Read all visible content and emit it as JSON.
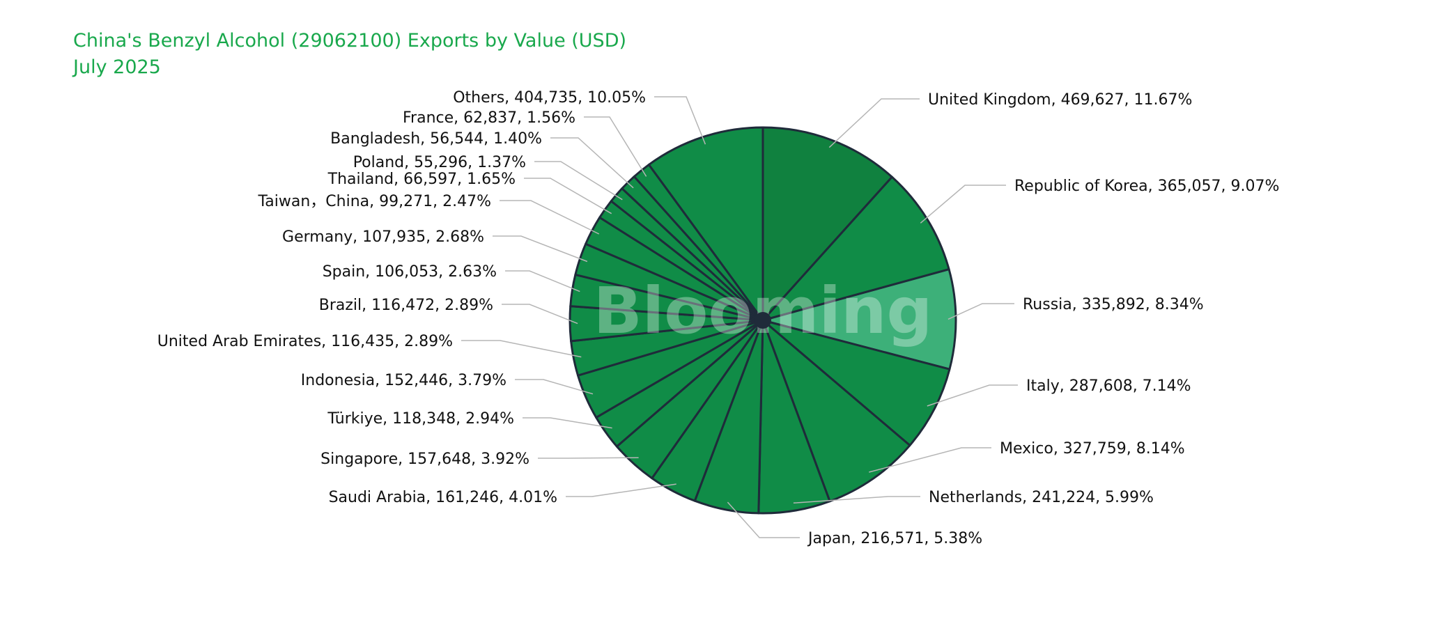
{
  "title": "China's Benzyl Alcohol (29062100) Exports by Value (USD)",
  "subtitle": "July 2025",
  "watermark": "Blooming",
  "colors": {
    "title": "#19a84c",
    "slice": "#108c47",
    "slice_dark": "#10813f",
    "slice_light": "#3db079",
    "slice_stroke": "#1f2b3a",
    "leader": "#b5b5b5",
    "label": "#111111"
  },
  "chart_data": {
    "type": "pie",
    "title": "China's Benzyl Alcohol (29062100) Exports by Value (USD)",
    "subtitle": "July 2025",
    "start_angle": "12 o'clock",
    "direction": "clockwise",
    "slices": [
      {
        "name": "United Kingdom",
        "value": 469627,
        "percent": "11.67%",
        "label": "United Kingdom, 469,627, 11.67%"
      },
      {
        "name": "Republic of Korea",
        "value": 365057,
        "percent": "9.07%",
        "label": "Republic of Korea, 365,057, 9.07%"
      },
      {
        "name": "Russia",
        "value": 335892,
        "percent": "8.34%",
        "label": "Russia, 335,892, 8.34%"
      },
      {
        "name": "Italy",
        "value": 287608,
        "percent": "7.14%",
        "label": "Italy, 287,608, 7.14%"
      },
      {
        "name": "Mexico",
        "value": 327759,
        "percent": "8.14%",
        "label": "Mexico, 327,759, 8.14%"
      },
      {
        "name": "Netherlands",
        "value": 241224,
        "percent": "5.99%",
        "label": "Netherlands, 241,224, 5.99%"
      },
      {
        "name": "Japan",
        "value": 216571,
        "percent": "5.38%",
        "label": "Japan, 216,571, 5.38%"
      },
      {
        "name": "Saudi Arabia",
        "value": 161246,
        "percent": "4.01%",
        "label": "Saudi Arabia, 161,246, 4.01%"
      },
      {
        "name": "Singapore",
        "value": 157648,
        "percent": "3.92%",
        "label": "Singapore, 157,648, 3.92%"
      },
      {
        "name": "Türkiye",
        "value": 118348,
        "percent": "2.94%",
        "label": "Türkiye, 118,348, 2.94%"
      },
      {
        "name": "Indonesia",
        "value": 152446,
        "percent": "3.79%",
        "label": "Indonesia, 152,446, 3.79%"
      },
      {
        "name": "United Arab Emirates",
        "value": 116435,
        "percent": "2.89%",
        "label": "United Arab Emirates, 116,435, 2.89%"
      },
      {
        "name": "Brazil",
        "value": 116472,
        "percent": "2.89%",
        "label": "Brazil, 116,472, 2.89%"
      },
      {
        "name": "Spain",
        "value": 106053,
        "percent": "2.63%",
        "label": "Spain, 106,053, 2.63%"
      },
      {
        "name": "Germany",
        "value": 107935,
        "percent": "2.68%",
        "label": "Germany, 107,935, 2.68%"
      },
      {
        "name": "Taiwan,  China",
        "value": 99271,
        "percent": "2.47%",
        "label": "Taiwan，China, 99,271, 2.47%"
      },
      {
        "name": "Thailand",
        "value": 66597,
        "percent": "1.65%",
        "label": "Thailand, 66,597, 1.65%"
      },
      {
        "name": "Poland",
        "value": 55296,
        "percent": "1.37%",
        "label": "Poland, 55,296, 1.37%"
      },
      {
        "name": "Bangladesh",
        "value": 56544,
        "percent": "1.40%",
        "label": "Bangladesh, 56,544, 1.40%"
      },
      {
        "name": "France",
        "value": 62837,
        "percent": "1.56%",
        "label": "France, 62,837, 1.56%"
      },
      {
        "name": "Others",
        "value": 404735,
        "percent": "10.05%",
        "label": "Others, 404,735, 10.05%"
      }
    ]
  }
}
